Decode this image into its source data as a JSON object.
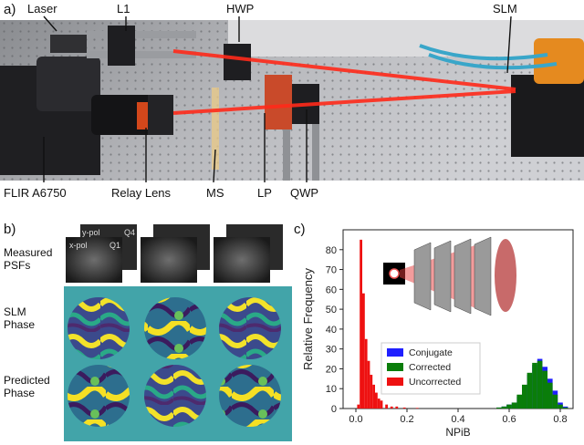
{
  "panel_a": {
    "letter": "a)",
    "labels": {
      "laser": "Laser",
      "l1": "L1",
      "hwp": "HWP",
      "slm": "SLM",
      "camera": "FLIR A6750",
      "relay": "Relay Lens",
      "ms": "MS",
      "lp": "LP",
      "qwp": "QWP"
    }
  },
  "panel_b": {
    "letter": "b)",
    "rows": [
      "Measured\nPSFs",
      "SLM\nPhase",
      "Predicted\nPhase"
    ],
    "psf_tags": {
      "y_pol": "y-pol",
      "x_pol": "x-pol",
      "q4": "Q4",
      "q1": "Q1"
    }
  },
  "panel_c": {
    "letter": "c)"
  },
  "chart_data": {
    "type": "histogram",
    "xlabel": "NPiB",
    "ylabel": "Relative Frequency",
    "xlim": [
      -0.05,
      0.85
    ],
    "ylim": [
      0,
      90
    ],
    "xticks": [
      "0.0",
      "0.2",
      "0.4",
      "0.6",
      "0.8"
    ],
    "yticks": [
      "0",
      "10",
      "20",
      "30",
      "40",
      "50",
      "60",
      "70",
      "80"
    ],
    "legend_position": "lower-center",
    "grid": false,
    "series": [
      {
        "name": "Conjugate",
        "color": "#1f1fff",
        "bins": [
          [
            0.56,
            0.5
          ],
          [
            0.58,
            1
          ],
          [
            0.6,
            2
          ],
          [
            0.62,
            3
          ],
          [
            0.64,
            6
          ],
          [
            0.66,
            11
          ],
          [
            0.68,
            17
          ],
          [
            0.7,
            22
          ],
          [
            0.72,
            25
          ],
          [
            0.74,
            21
          ],
          [
            0.76,
            15
          ],
          [
            0.78,
            9
          ],
          [
            0.8,
            3
          ],
          [
            0.82,
            1
          ]
        ]
      },
      {
        "name": "Corrected",
        "color": "#0a7d0a",
        "bins": [
          [
            0.56,
            0.5
          ],
          [
            0.58,
            1
          ],
          [
            0.6,
            2
          ],
          [
            0.62,
            3
          ],
          [
            0.64,
            7
          ],
          [
            0.66,
            12
          ],
          [
            0.68,
            18
          ],
          [
            0.7,
            23
          ],
          [
            0.72,
            24
          ],
          [
            0.74,
            19
          ],
          [
            0.76,
            13
          ],
          [
            0.78,
            7
          ],
          [
            0.8,
            2
          ],
          [
            0.82,
            0.5
          ]
        ]
      },
      {
        "name": "Uncorrected",
        "color": "#ee1111",
        "bins": [
          [
            0.01,
            2
          ],
          [
            0.02,
            85
          ],
          [
            0.03,
            58
          ],
          [
            0.04,
            35
          ],
          [
            0.05,
            24
          ],
          [
            0.06,
            17
          ],
          [
            0.07,
            12
          ],
          [
            0.08,
            8
          ],
          [
            0.09,
            5
          ],
          [
            0.1,
            4
          ],
          [
            0.12,
            2
          ],
          [
            0.14,
            1
          ],
          [
            0.16,
            1
          ],
          [
            0.19,
            0.5
          ],
          [
            0.24,
            0.3
          ]
        ]
      }
    ]
  }
}
